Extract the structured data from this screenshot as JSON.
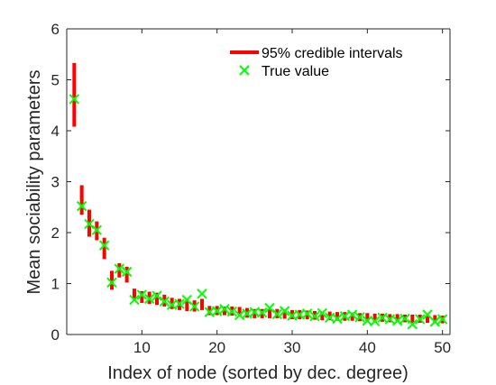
{
  "chart_data": {
    "type": "scatter",
    "xlabel": "Index of node (sorted by dec. degree)",
    "ylabel": "Mean sociability parameters",
    "xlim": [
      0,
      51
    ],
    "ylim": [
      0,
      6
    ],
    "xticks": [
      10,
      20,
      30,
      40,
      50
    ],
    "yticks": [
      0,
      1,
      2,
      3,
      4,
      5,
      6
    ],
    "grid": false,
    "legend_position": "top-right",
    "legend": [
      "95% credible intervals",
      "True value"
    ],
    "colors": {
      "interval": "#ff0000",
      "true_value": "#00ff00",
      "axis": "#262626"
    },
    "series": [
      {
        "name": "95% credible intervals",
        "marker": "vertical-bar",
        "x": [
          1,
          2,
          3,
          4,
          5,
          6,
          7,
          8,
          9,
          10,
          11,
          12,
          13,
          14,
          15,
          16,
          17,
          18,
          19,
          20,
          21,
          22,
          23,
          24,
          25,
          26,
          27,
          28,
          29,
          30,
          31,
          32,
          33,
          34,
          35,
          36,
          37,
          38,
          39,
          40,
          41,
          42,
          43,
          44,
          45,
          46,
          47,
          48,
          49,
          50
        ],
        "low": [
          4.08,
          2.35,
          1.92,
          1.85,
          1.48,
          0.88,
          1.12,
          1.02,
          0.68,
          0.62,
          0.6,
          0.58,
          0.55,
          0.5,
          0.48,
          0.46,
          0.45,
          0.48,
          0.38,
          0.38,
          0.38,
          0.37,
          0.35,
          0.33,
          0.32,
          0.32,
          0.32,
          0.32,
          0.31,
          0.3,
          0.3,
          0.3,
          0.29,
          0.28,
          0.28,
          0.27,
          0.27,
          0.27,
          0.26,
          0.25,
          0.25,
          0.25,
          0.24,
          0.24,
          0.24,
          0.23,
          0.23,
          0.23,
          0.22,
          0.22
        ],
        "high": [
          5.33,
          2.93,
          2.45,
          2.22,
          1.9,
          1.25,
          1.4,
          1.33,
          0.9,
          0.85,
          0.84,
          0.82,
          0.78,
          0.72,
          0.7,
          0.68,
          0.67,
          0.7,
          0.56,
          0.56,
          0.55,
          0.55,
          0.54,
          0.52,
          0.5,
          0.5,
          0.5,
          0.5,
          0.49,
          0.48,
          0.48,
          0.47,
          0.46,
          0.45,
          0.45,
          0.44,
          0.44,
          0.43,
          0.42,
          0.42,
          0.41,
          0.41,
          0.4,
          0.4,
          0.39,
          0.39,
          0.39,
          0.38,
          0.38,
          0.37
        ]
      },
      {
        "name": "True value",
        "marker": "x",
        "x": [
          1,
          2,
          3,
          4,
          5,
          6,
          7,
          8,
          9,
          10,
          11,
          12,
          13,
          14,
          15,
          16,
          17,
          18,
          19,
          20,
          21,
          22,
          23,
          24,
          25,
          26,
          27,
          28,
          29,
          30,
          31,
          32,
          33,
          34,
          35,
          36,
          37,
          38,
          39,
          40,
          41,
          42,
          43,
          44,
          45,
          46,
          47,
          48,
          49,
          50
        ],
        "values": [
          4.62,
          2.52,
          2.17,
          2.05,
          1.75,
          1.02,
          1.29,
          1.23,
          0.68,
          0.78,
          0.7,
          0.76,
          0.65,
          0.58,
          0.6,
          0.68,
          0.55,
          0.8,
          0.44,
          0.46,
          0.5,
          0.45,
          0.38,
          0.41,
          0.44,
          0.43,
          0.52,
          0.4,
          0.46,
          0.37,
          0.39,
          0.41,
          0.36,
          0.42,
          0.33,
          0.31,
          0.36,
          0.39,
          0.34,
          0.27,
          0.26,
          0.33,
          0.3,
          0.27,
          0.31,
          0.2,
          0.3,
          0.39,
          0.25,
          0.3
        ]
      }
    ]
  }
}
